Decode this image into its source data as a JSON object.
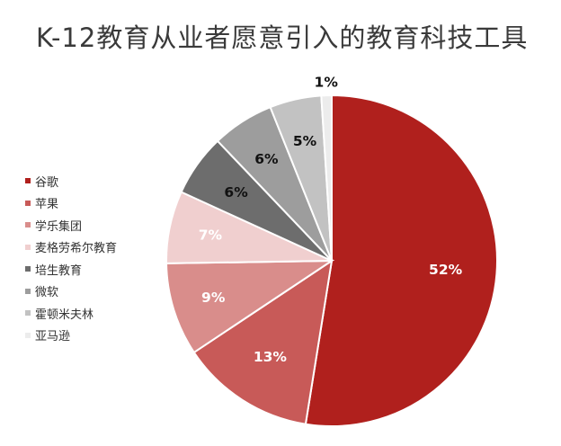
{
  "chart_data": {
    "type": "pie",
    "title": "K-12教育从业者愿意引入的教育科技工具",
    "categories": [
      "谷歌",
      "苹果",
      "学乐集团",
      "麦格劳希尔教育",
      "培生教育",
      "微软",
      "霍顿米夫林",
      "亚马逊"
    ],
    "values": [
      52,
      13,
      9,
      7,
      6,
      6,
      5,
      1
    ],
    "data_labels": [
      "52%",
      "13%",
      "9%",
      "7%",
      "6%",
      "6%",
      "5%",
      "1%"
    ],
    "colors": [
      "#b0201d",
      "#c85a58",
      "#d98d8b",
      "#f0cfcf",
      "#6d6d6d",
      "#9d9d9d",
      "#c2c2c2",
      "#ececec"
    ],
    "label_colors": [
      "#ffffff",
      "#ffffff",
      "#ffffff",
      "#ffffff",
      "#111111",
      "#111111",
      "#111111",
      "#111111"
    ],
    "legend": "left",
    "start_angle": "top, clockwise"
  }
}
